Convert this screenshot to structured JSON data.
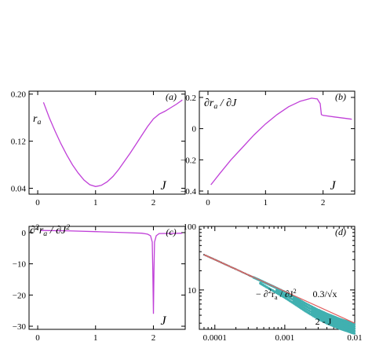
{
  "colors": {
    "curve": "#c040d8",
    "fit_line": "#e06060",
    "scatter": "#40b0b0",
    "dots": "#707070",
    "axis": "#000000"
  },
  "chart_data": [
    {
      "panel": "(a)",
      "type": "line",
      "ylabel": "r_a",
      "xlabel": "J",
      "xlim": [
        -0.15,
        2.55
      ],
      "ylim": [
        0.03,
        0.205
      ],
      "xticks": [
        0,
        1,
        2
      ],
      "xtick_labels": [
        "0",
        "1",
        "2"
      ],
      "yticks": [
        0.04,
        0.12,
        0.2
      ],
      "ytick_labels": [
        "0.04",
        "0.12",
        "0.20"
      ],
      "series": [
        {
          "x": [
            0.1,
            0.2,
            0.3,
            0.4,
            0.5,
            0.6,
            0.7,
            0.8,
            0.9,
            1.0,
            1.1,
            1.2,
            1.3,
            1.4,
            1.5,
            1.6,
            1.7,
            1.8,
            1.9,
            2.0,
            2.05,
            2.1,
            2.2,
            2.3,
            2.4,
            2.5
          ],
          "y": [
            0.186,
            0.16,
            0.137,
            0.116,
            0.097,
            0.08,
            0.066,
            0.054,
            0.046,
            0.043,
            0.045,
            0.051,
            0.06,
            0.072,
            0.086,
            0.1,
            0.115,
            0.13,
            0.145,
            0.158,
            0.162,
            0.166,
            0.171,
            0.177,
            0.183,
            0.19
          ]
        }
      ]
    },
    {
      "panel": "(b)",
      "type": "line",
      "ylabel": "∂r_a / ∂J",
      "xlabel": "J",
      "xlim": [
        -0.15,
        2.55
      ],
      "ylim": [
        -0.42,
        0.24
      ],
      "xticks": [
        0,
        1,
        2
      ],
      "xtick_labels": [
        "0",
        "1",
        "2"
      ],
      "yticks": [
        -0.4,
        -0.2,
        0,
        0.2
      ],
      "ytick_labels": [
        "−0.4",
        "−0.2",
        "0",
        "0.2"
      ],
      "series": [
        {
          "x": [
            0.05,
            0.2,
            0.4,
            0.6,
            0.8,
            1.0,
            1.2,
            1.4,
            1.6,
            1.8,
            1.9,
            1.95,
            1.97,
            2.0,
            2.2,
            2.4,
            2.5
          ],
          "y": [
            -0.36,
            -0.29,
            -0.2,
            -0.12,
            -0.04,
            0.03,
            0.09,
            0.14,
            0.175,
            0.195,
            0.19,
            0.16,
            0.09,
            0.085,
            0.075,
            0.065,
            0.06
          ]
        }
      ]
    },
    {
      "panel": "(c)",
      "type": "line",
      "ylabel": "∂²r_a / ∂J²",
      "xlabel": "J",
      "xlim": [
        -0.15,
        2.55
      ],
      "ylim": [
        -31,
        2
      ],
      "xticks": [
        0,
        1,
        2
      ],
      "xtick_labels": [
        "0",
        "1",
        "2"
      ],
      "yticks": [
        0,
        -10,
        -20,
        -30
      ],
      "ytick_labels": [
        "0",
        "−10",
        "−20",
        "−30"
      ],
      "series": [
        {
          "x": [
            0.05,
            0.5,
            1.0,
            1.5,
            1.8,
            1.9,
            1.95,
            1.98,
            1.99,
            2.0,
            2.01,
            2.02,
            2.05,
            2.1,
            2.5
          ],
          "y": [
            0.7,
            0.6,
            0.3,
            0.0,
            -0.2,
            -0.5,
            -1.0,
            -3.0,
            -12.0,
            -26.0,
            -12.0,
            -3.0,
            -1.0,
            -0.3,
            -0.2
          ]
        }
      ]
    },
    {
      "panel": "(d)",
      "type": "scatter",
      "xlabel": "2 - J",
      "xscale": "log",
      "yscale": "log",
      "xlim": [
        6e-05,
        0.01
      ],
      "ylim": [
        2.4,
        100
      ],
      "xticks": [
        0.0001,
        0.001,
        0.01
      ],
      "xtick_labels": [
        "0.0001",
        "0.001",
        "0.01"
      ],
      "yticks": [
        10,
        100
      ],
      "ytick_labels": [
        "10",
        "100"
      ],
      "annotations": [
        "0.3/√x",
        "− ∂²r_a / ∂J²"
      ],
      "fit_line": {
        "a": 0.3,
        "exponent": -0.5
      },
      "data_x": [
        7e-05,
        0.0001,
        0.00014,
        0.0002,
        0.0003,
        0.0004,
        0.0005,
        0.0007,
        0.001,
        0.0014,
        0.002,
        0.003,
        0.004,
        0.005,
        0.006,
        0.007,
        0.008,
        0.009,
        0.01
      ],
      "data_y": [
        35.8,
        30.0,
        25.3,
        21.2,
        17.2,
        14.9,
        13.3,
        11.2,
        9.3,
        7.6,
        6.1,
        4.85,
        4.2,
        3.8,
        3.5,
        3.3,
        3.15,
        3.0,
        2.9
      ],
      "data_spread": [
        0,
        0,
        0,
        0,
        0,
        0.1,
        0.15,
        0.2,
        0.25,
        0.3,
        0.35,
        0.4,
        0.42,
        0.42,
        0.42,
        0.42,
        0.42,
        0.42,
        0.42
      ]
    }
  ]
}
